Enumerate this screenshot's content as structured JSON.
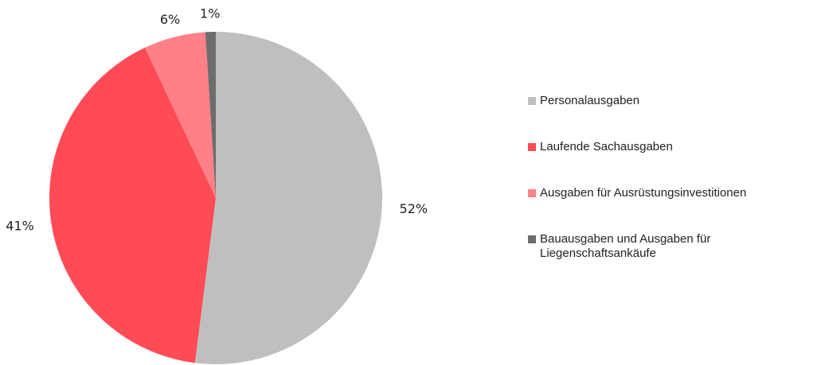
{
  "chart_data": {
    "type": "pie",
    "categories": [
      "Personalausgaben",
      "Laufende Sachausgaben",
      "Ausgaben für Ausrüstungsinvestitionen",
      "Bauausgaben und Ausgaben für Liegenschaftsankäufe"
    ],
    "values": [
      52,
      41,
      6,
      1
    ],
    "value_labels": [
      "52%",
      "41%",
      "6%",
      "1%"
    ],
    "colors": [
      "#bfbfbf",
      "#ff4b55",
      "#ff8087",
      "#6d6d6d"
    ],
    "legend": "right"
  }
}
